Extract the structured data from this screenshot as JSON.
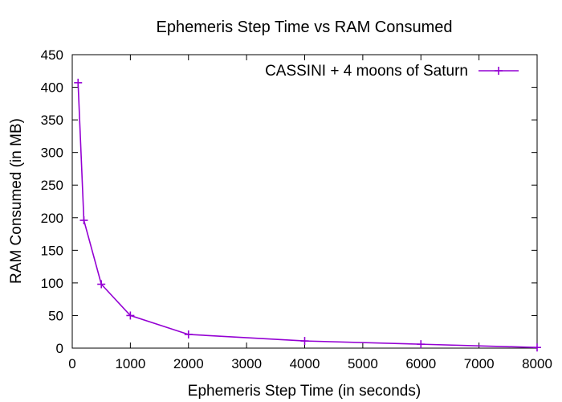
{
  "chart_data": {
    "type": "line",
    "title": "Ephemeris Step Time vs RAM Consumed",
    "xlabel": "Ephemeris Step Time (in seconds)",
    "ylabel": "RAM Consumed (in MB)",
    "xlim": [
      0,
      8000
    ],
    "ylim": [
      0,
      450
    ],
    "xticks": [
      0,
      1000,
      2000,
      3000,
      4000,
      5000,
      6000,
      7000,
      8000
    ],
    "yticks": [
      0,
      50,
      100,
      150,
      200,
      250,
      300,
      350,
      400,
      450
    ],
    "grid": false,
    "legend_position": "top-right",
    "series": [
      {
        "name": "CASSINI + 4 moons of Saturn",
        "color": "#9400d3",
        "marker": "plus",
        "x": [
          100,
          200,
          500,
          1000,
          2000,
          4000,
          6000,
          8000
        ],
        "y": [
          407,
          196,
          98,
          50,
          21,
          11,
          6,
          1
        ]
      }
    ]
  }
}
